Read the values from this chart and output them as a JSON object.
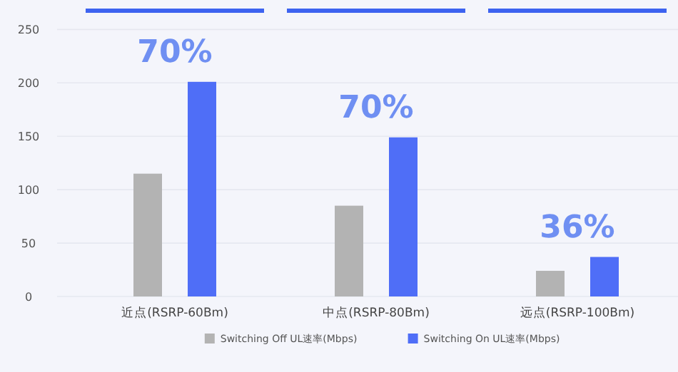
{
  "chart_data": {
    "type": "bar",
    "categories": [
      "近点(RSRP-60Bm)",
      "中点(RSRP-80Bm)",
      "远点(RSRP-100Bm)"
    ],
    "series": [
      {
        "name": "Switching Off UL速率(Mbps)",
        "color": "#b3b3b3",
        "values": [
          115,
          85,
          24
        ]
      },
      {
        "name": "Switching On UL速率(Mbps)",
        "color": "#4f6ef7",
        "values": [
          201,
          149,
          37
        ]
      }
    ],
    "ylim": [
      0,
      250
    ],
    "yticks": [
      0,
      50,
      100,
      150,
      200,
      250
    ],
    "grid": "y",
    "legend": "bottom",
    "annotations": [
      "70%",
      "70%",
      "36%"
    ]
  }
}
